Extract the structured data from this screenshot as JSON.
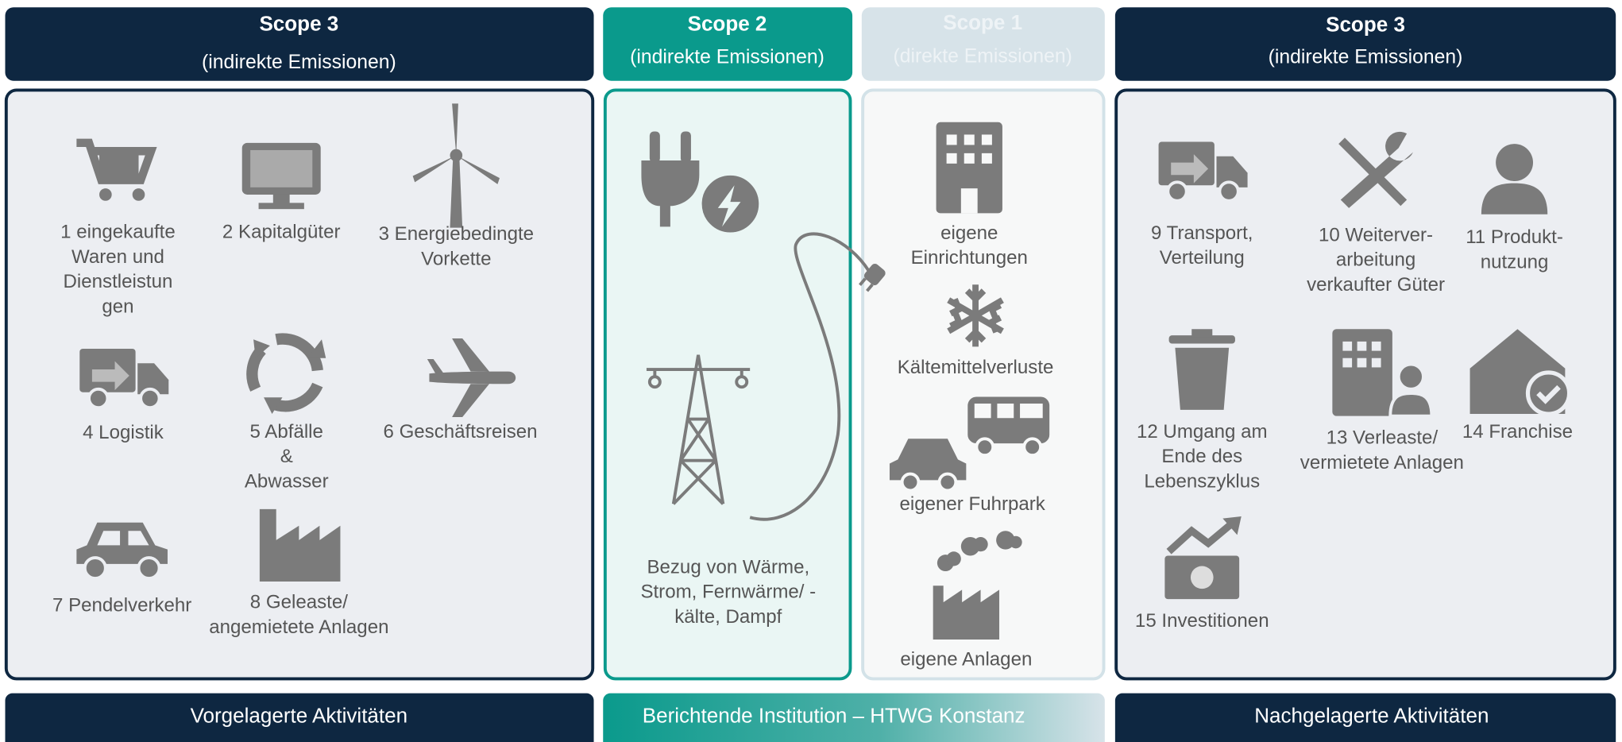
{
  "columns": [
    {
      "title": "Scope 3",
      "subtitle": "(indirekte Emissionen)",
      "items": [
        {
          "lines": [
            "1 eingekaufte",
            "Waren und",
            "Dienstleistun",
            "gen"
          ]
        },
        {
          "lines": [
            "2 Kapitalgüter"
          ]
        },
        {
          "lines": [
            "3 Energiebedingte",
            "Vorkette"
          ]
        },
        {
          "lines": [
            "4 Logistik"
          ]
        },
        {
          "lines": [
            "5 Abfälle",
            "&",
            "Abwasser"
          ]
        },
        {
          "lines": [
            "6 Geschäftsreisen"
          ]
        },
        {
          "lines": [
            "7 Pendelverkehr"
          ]
        },
        {
          "lines": [
            "8 Geleaste/",
            "angemietete Anlagen"
          ]
        }
      ]
    },
    {
      "title": "Scope 2",
      "subtitle": "(indirekte Emissionen)",
      "items": [
        {
          "lines": [
            "Bezug von Wärme,",
            "Strom, Fernwärme/ -",
            "kälte, Dampf"
          ]
        }
      ]
    },
    {
      "title": "Scope 1",
      "subtitle": "(direkte Emissionen)",
      "items": [
        {
          "lines": [
            "eigene",
            "Einrichtungen"
          ]
        },
        {
          "lines": [
            "Kältemittelverluste"
          ]
        },
        {
          "lines": [
            "eigener Fuhrpark"
          ]
        },
        {
          "lines": [
            "eigene Anlagen"
          ]
        }
      ]
    },
    {
      "title": "Scope 3",
      "subtitle": "(indirekte Emissionen)",
      "items": [
        {
          "lines": [
            "9 Transport,",
            "Verteilung"
          ]
        },
        {
          "lines": [
            "10 Weiterver-",
            "arbeitung",
            "verkaufter Güter"
          ]
        },
        {
          "lines": [
            "11 Produkt-",
            "nutzung"
          ]
        },
        {
          "lines": [
            "12 Umgang am",
            "Ende des",
            "Lebenszyklus"
          ]
        },
        {
          "lines": [
            "13 Verleaste/",
            "vermietete Anlagen"
          ]
        },
        {
          "lines": [
            "14 Franchise"
          ]
        },
        {
          "lines": [
            "15 Investitionen"
          ]
        }
      ]
    }
  ],
  "footers": [
    "Vorgelagerte Aktivitäten",
    "Berichtende Institution – HTWG Konstanz",
    "Nachgelagerte Aktivitäten"
  ]
}
